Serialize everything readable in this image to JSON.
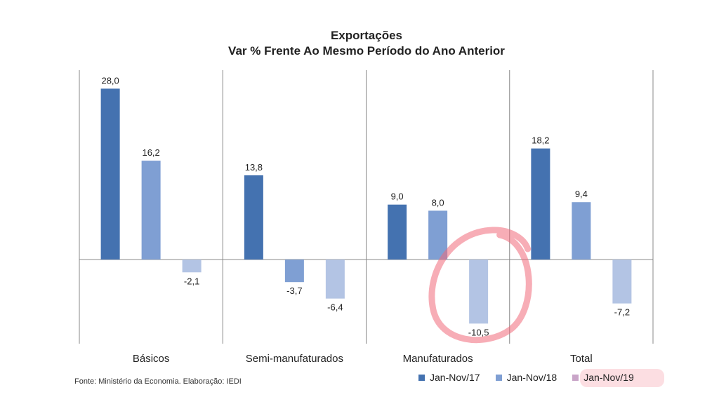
{
  "chart_data": {
    "type": "bar",
    "title": "Exportações",
    "subtitle": "Var % Frente Ao Mesmo Período do Ano Anterior",
    "categories": [
      "Básicos",
      "Semi-manufaturados",
      "Manufaturados",
      "Total"
    ],
    "series": [
      {
        "name": "Jan-Nov/17",
        "color": "#4472b0",
        "values": [
          28.0,
          13.8,
          9.0,
          18.2
        ],
        "labels": [
          "28,0",
          "13,8",
          "9,0",
          "18,2"
        ]
      },
      {
        "name": "Jan-Nov/18",
        "color": "#7f9fd3",
        "values": [
          16.2,
          -3.7,
          8.0,
          9.4
        ],
        "labels": [
          "16,2",
          "-3,7",
          "8,0",
          "9,4"
        ]
      },
      {
        "name": "Jan-Nov/19",
        "color": "#b3c4e4",
        "values": [
          -2.1,
          -6.4,
          -10.5,
          -7.2
        ],
        "labels": [
          "-2,1",
          "-6,4",
          "-10,5",
          "-7,2"
        ]
      }
    ],
    "legend": "bottom-right",
    "grid": false,
    "annotation": "red hand-drawn circle around Manufaturados Jan-Nov/19 bar and legend entry"
  },
  "source_note": "Fonte: Ministério da Economia. Elaboração: IEDI",
  "legend_swatch_color_19": "#c9a5c8",
  "highlight_color": "#f06a7a"
}
